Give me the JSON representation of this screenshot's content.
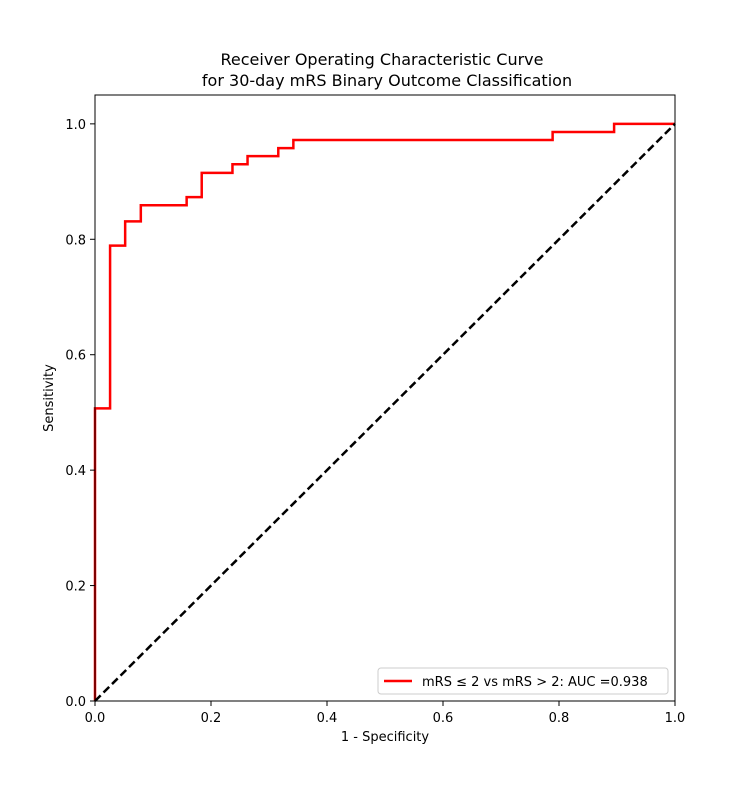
{
  "chart_data": {
    "type": "line",
    "title_lines": [
      "Receiver Operating Characteristic Curve",
      "for 30-day mRS Binary Outcome Classification"
    ],
    "xlabel": "1 - Specificity",
    "ylabel": "Sensitivity",
    "xlim": [
      0.0,
      1.0
    ],
    "ylim": [
      0.0,
      1.05
    ],
    "xticks": [
      0.0,
      0.2,
      0.4,
      0.6,
      0.8,
      1.0
    ],
    "yticks": [
      0.0,
      0.2,
      0.4,
      0.6,
      0.8,
      1.0
    ],
    "xtick_labels": [
      "0.0",
      "0.2",
      "0.4",
      "0.6",
      "0.8",
      "1.0"
    ],
    "ytick_labels": [
      "0.0",
      "0.2",
      "0.4",
      "0.6",
      "0.8",
      "1.0"
    ],
    "grid": false,
    "legend_position": "lower-right",
    "series": [
      {
        "name": "mRS ≤ 2 vs mRS > 2: AUC =0.938",
        "color": "#ff0000",
        "style": "solid",
        "x": [
          0.0,
          0.0,
          0.0,
          0.026,
          0.026,
          0.052,
          0.052,
          0.079,
          0.079,
          0.158,
          0.158,
          0.184,
          0.184,
          0.237,
          0.237,
          0.263,
          0.263,
          0.316,
          0.316,
          0.342,
          0.342,
          0.789,
          0.789,
          0.895,
          0.895,
          1.0
        ],
        "y": [
          0.0,
          0.014,
          0.507,
          0.507,
          0.789,
          0.789,
          0.831,
          0.831,
          0.859,
          0.859,
          0.873,
          0.873,
          0.915,
          0.915,
          0.93,
          0.93,
          0.944,
          0.944,
          0.958,
          0.958,
          0.972,
          0.972,
          0.986,
          0.986,
          1.0,
          1.0
        ]
      },
      {
        "color": "#000000",
        "style": "dashed",
        "x": [
          0.0,
          1.0
        ],
        "y": [
          0.0,
          1.0
        ]
      }
    ]
  }
}
